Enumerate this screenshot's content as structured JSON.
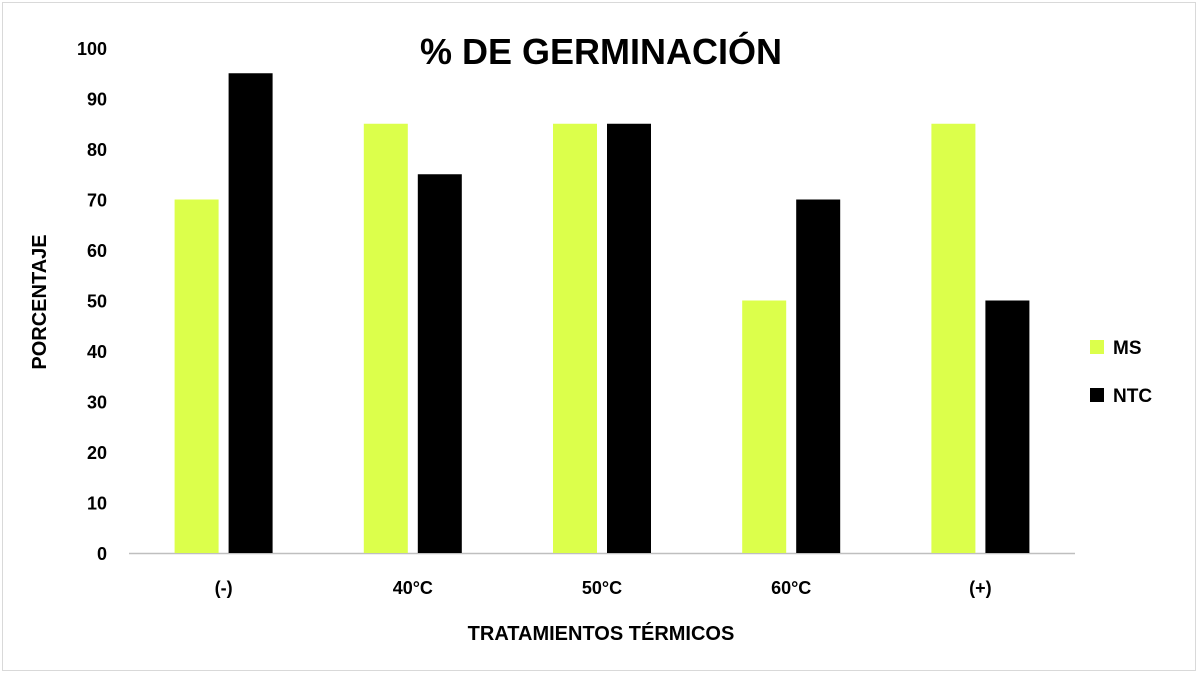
{
  "chart_data": {
    "type": "bar",
    "title": "% DE GERMINACIÓN",
    "xlabel": "TRATAMIENTOS TÉRMICOS",
    "ylabel": "PORCENTAJE",
    "categories": [
      "(-)",
      "40°C",
      "50°C",
      "60°C",
      "(+)"
    ],
    "series": [
      {
        "name": "MS",
        "color": "#dcff4b",
        "values": [
          70,
          85,
          85,
          50,
          85
        ]
      },
      {
        "name": "NTC",
        "color": "#000000",
        "values": [
          95,
          75,
          85,
          70,
          50
        ]
      }
    ],
    "ylim": [
      0,
      100
    ],
    "yticks": [
      "0",
      "10",
      "20",
      "30",
      "40",
      "50",
      "60",
      "70",
      "80",
      "90",
      "100"
    ],
    "grid": false,
    "legend_position": "right"
  }
}
